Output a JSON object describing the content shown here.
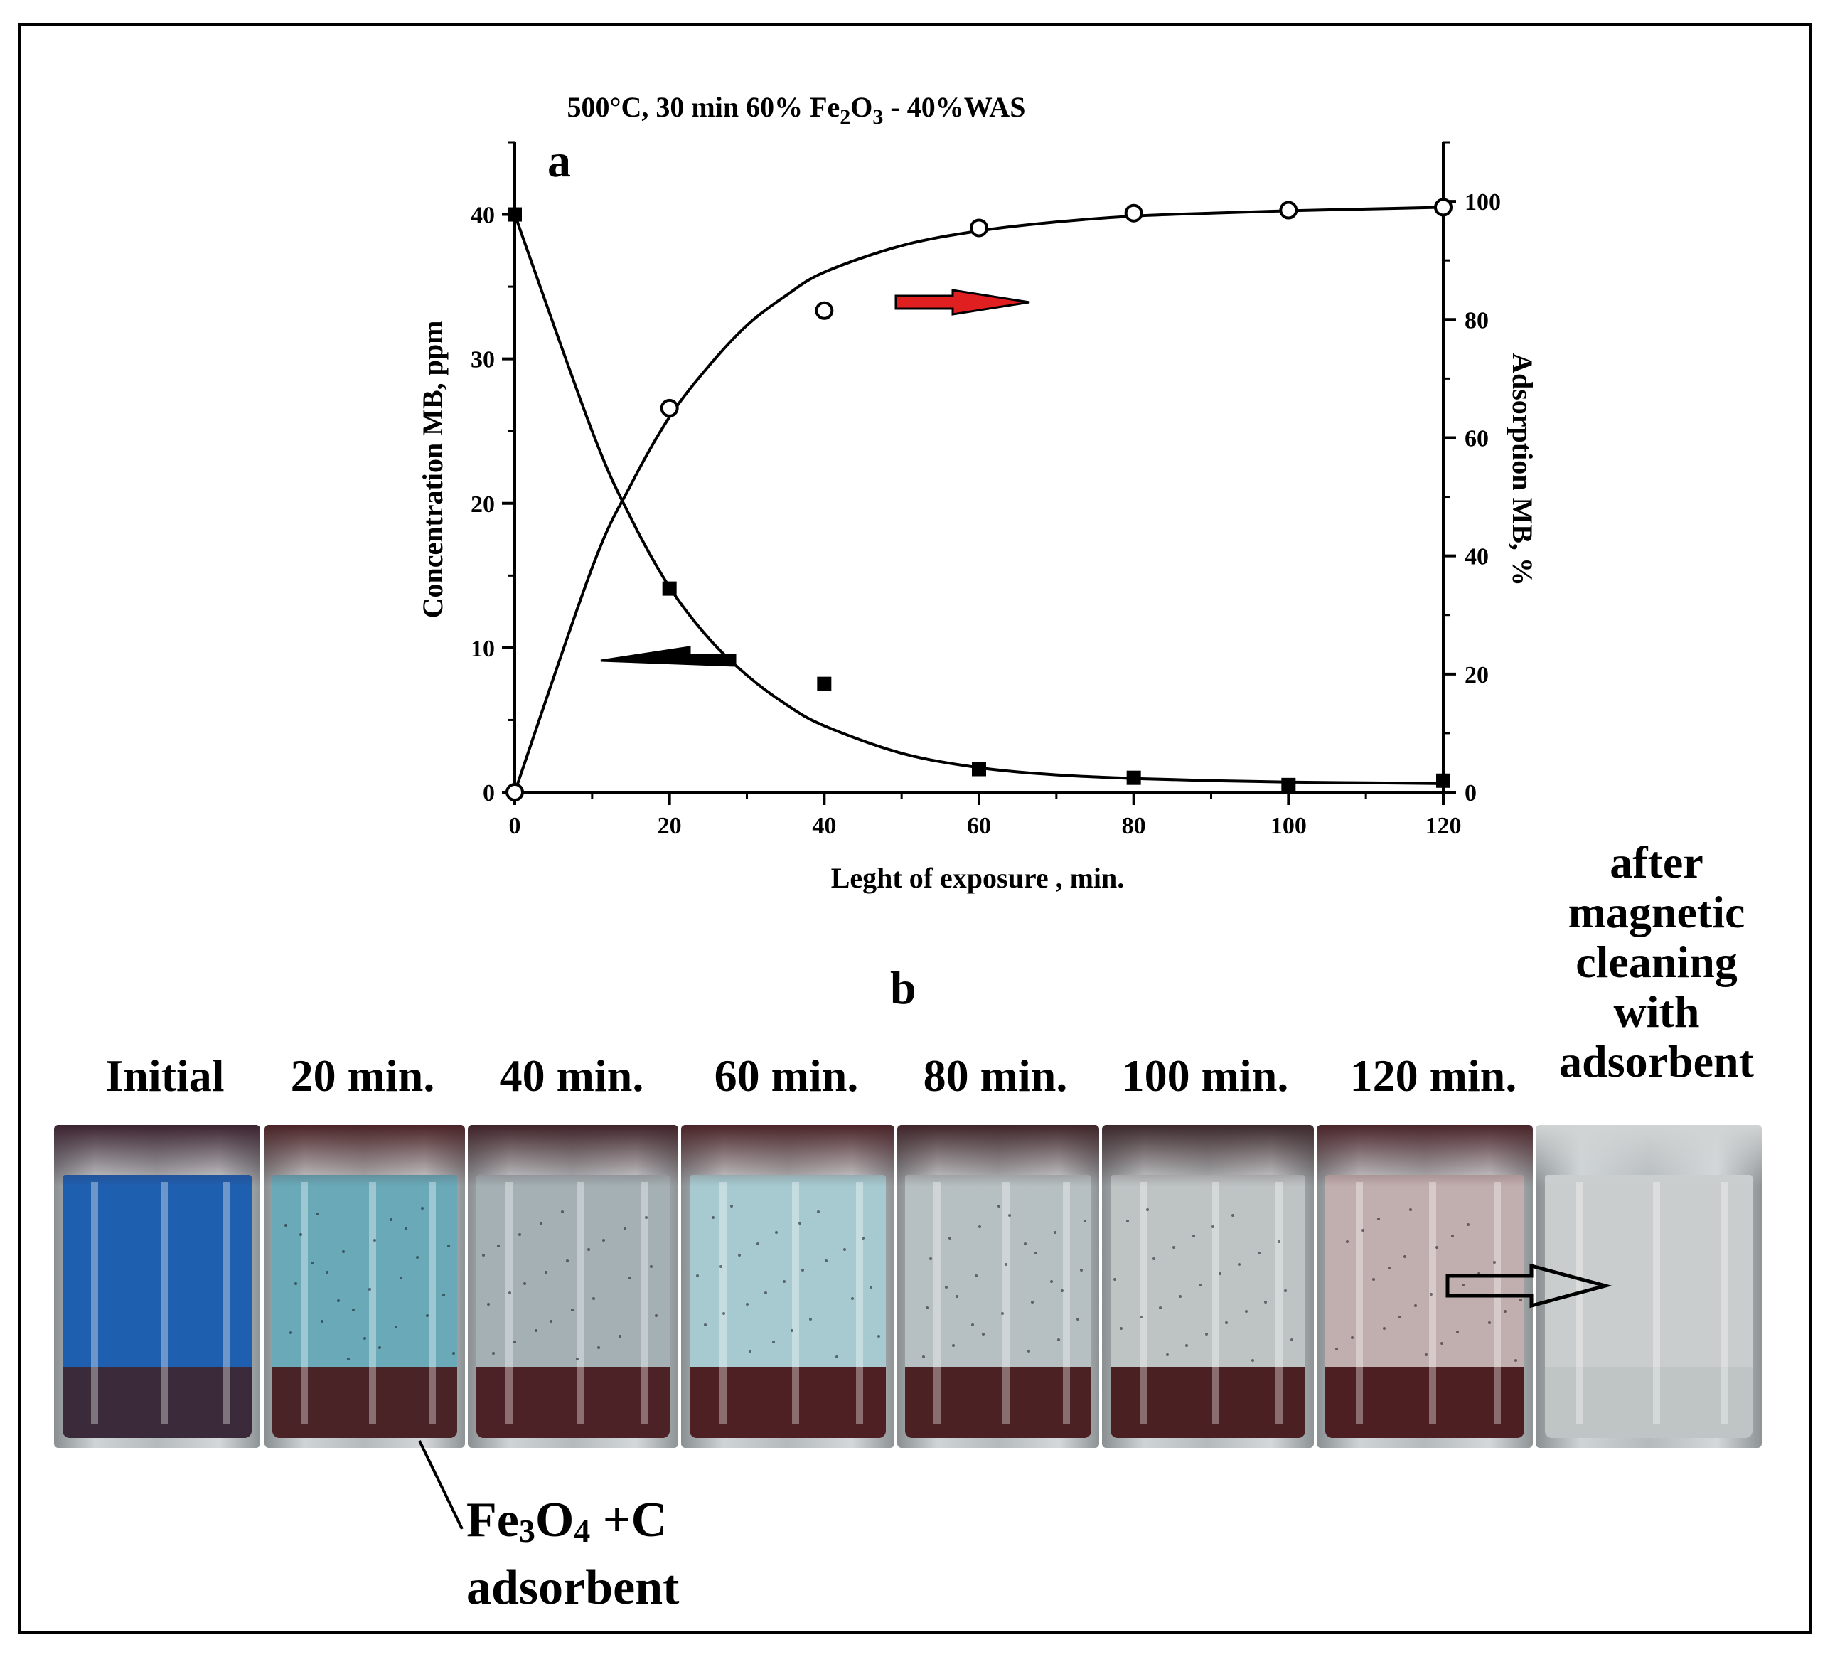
{
  "panel_a_letter": "a",
  "panel_b_letter": "b",
  "chart_data": {
    "type": "scatter",
    "title": "500°C, 30 min  60% Fe2O3 - 40%WAS",
    "xlabel": "Leght of exposure , min.",
    "ylabel_left": "Concentration MB, ppm",
    "ylabel_right": "Adsorption MB, %",
    "xlim": [
      0,
      120
    ],
    "ylim_left": [
      0,
      45
    ],
    "ylim_right": [
      0,
      110
    ],
    "x_ticks": [
      0,
      20,
      40,
      60,
      80,
      100,
      120
    ],
    "y_left_ticks": [
      0,
      10,
      20,
      30,
      40
    ],
    "y_right_ticks": [
      0,
      20,
      40,
      60,
      80,
      100
    ],
    "grid": false,
    "series": [
      {
        "marker": "filled-square",
        "axis": "left",
        "color": "#000000",
        "x": [
          0,
          20,
          40,
          60,
          80,
          100,
          120
        ],
        "y": [
          40,
          14.1,
          7.5,
          1.6,
          1.0,
          0.5,
          0.8
        ],
        "fit_curve": [
          [
            0,
            40
          ],
          [
            10,
            25.0
          ],
          [
            15,
            19.0
          ],
          [
            20,
            14.2
          ],
          [
            25,
            10.7
          ],
          [
            30,
            8.1
          ],
          [
            35,
            6.1
          ],
          [
            40,
            4.6
          ],
          [
            50,
            2.7
          ],
          [
            60,
            1.7
          ],
          [
            70,
            1.2
          ],
          [
            80,
            0.95
          ],
          [
            90,
            0.8
          ],
          [
            100,
            0.7
          ],
          [
            110,
            0.65
          ],
          [
            120,
            0.6
          ]
        ]
      },
      {
        "marker": "open-circle",
        "axis": "right",
        "color": "#000000",
        "x": [
          0,
          20,
          40,
          60,
          80,
          100,
          120
        ],
        "y": [
          0,
          65,
          81.5,
          95.5,
          98,
          98.5,
          99
        ],
        "fit_curve": [
          [
            0,
            0
          ],
          [
            10,
            38
          ],
          [
            15,
            52
          ],
          [
            20,
            63.5
          ],
          [
            25,
            72
          ],
          [
            30,
            79
          ],
          [
            35,
            84
          ],
          [
            40,
            88
          ],
          [
            50,
            92.5
          ],
          [
            60,
            95
          ],
          [
            70,
            96.5
          ],
          [
            80,
            97.5
          ],
          [
            90,
            98
          ],
          [
            100,
            98.4
          ],
          [
            110,
            98.7
          ],
          [
            120,
            99
          ]
        ]
      }
    ],
    "arrow_left_color": "#000000",
    "arrow_right_color": "#e02020"
  },
  "vial_labels": [
    "Initial",
    "20 min.",
    "40 min.",
    "60 min.",
    "80 min.",
    "100 min.",
    "120 min."
  ],
  "after_label": {
    "line1": "after",
    "line2": "magnetic",
    "line3": "cleaning",
    "line4": "with",
    "line5": "adsorbent"
  },
  "adsorbent_label": {
    "fe": "Fe",
    "sub3": "3",
    "o": "O",
    "sub4": "4",
    "rest": " +C",
    "line2": "adsorbent"
  },
  "vials": [
    {
      "liquid": "#1f5fb0",
      "sediment": "#3a2a3a",
      "cap": "#3b2330"
    },
    {
      "liquid": "#69a9b8",
      "sediment": "#4a2326",
      "cap": "#4a2326"
    },
    {
      "liquid": "#a4b0b4",
      "sediment": "#4d2226",
      "cap": "#3f2328"
    },
    {
      "liquid": "#a6cad0",
      "sediment": "#4e2024",
      "cap": "#4a2428"
    },
    {
      "liquid": "#b6bfc1",
      "sediment": "#4b2124",
      "cap": "#3f2529"
    },
    {
      "liquid": "#bec3c4",
      "sediment": "#4a2023",
      "cap": "#3c282b"
    },
    {
      "liquid": "#c1aeae",
      "sediment": "#4d1f23",
      "cap": "#4a252a"
    },
    {
      "liquid": "#c9cdcd",
      "sediment": "#bfc4c4",
      "cap": "#d0d4d4"
    }
  ]
}
